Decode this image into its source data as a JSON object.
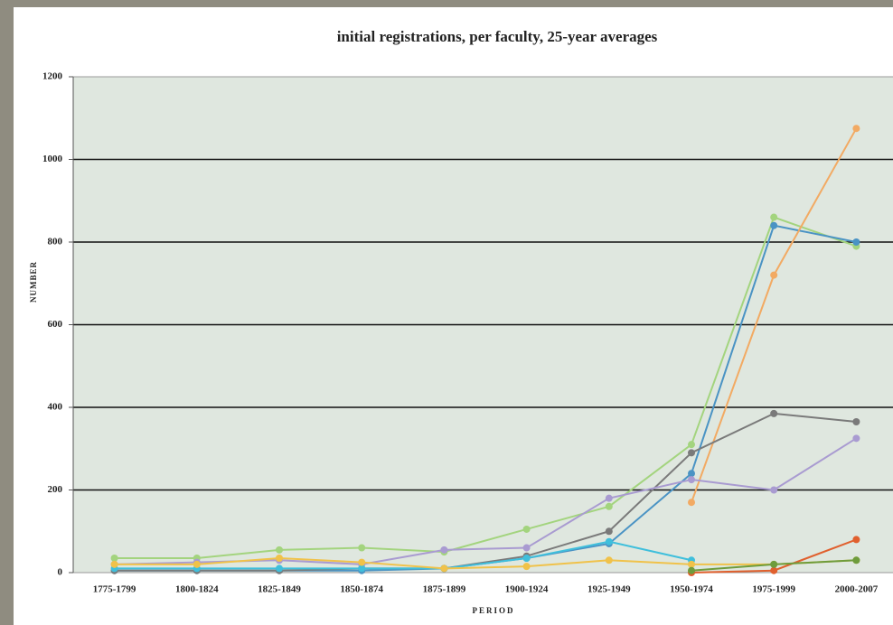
{
  "chart_data": {
    "type": "line",
    "title": "initial registrations, per faculty, 25-year averages",
    "x_label": "PERIOD",
    "y_label": "NUMBER",
    "categories": [
      "1775-1799",
      "1800-1824",
      "1825-1849",
      "1850-1874",
      "1875-1899",
      "1900-1924",
      "1925-1949",
      "1950-1974",
      "1975-1999",
      "2000-2007"
    ],
    "series": [
      {
        "color": "#a3d47e",
        "values": [
          35,
          35,
          55,
          60,
          50,
          105,
          160,
          310,
          860,
          790
        ]
      },
      {
        "color": "#4a93c4",
        "values": [
          5,
          5,
          5,
          5,
          10,
          35,
          70,
          240,
          840,
          800
        ]
      },
      {
        "color": "#f2aa63",
        "values": [
          null,
          null,
          null,
          null,
          null,
          null,
          null,
          170,
          720,
          1075
        ]
      },
      {
        "color": "#7a7a7a",
        "values": [
          5,
          5,
          5,
          10,
          10,
          40,
          100,
          290,
          385,
          365
        ]
      },
      {
        "color": "#a99bd1",
        "values": [
          20,
          25,
          30,
          20,
          55,
          60,
          180,
          225,
          200,
          325
        ]
      },
      {
        "color": "#3fbfdc",
        "values": [
          10,
          10,
          10,
          10,
          10,
          35,
          75,
          30,
          null,
          null
        ]
      },
      {
        "color": "#f0c24a",
        "values": [
          20,
          20,
          35,
          25,
          10,
          15,
          30,
          20,
          20,
          30
        ]
      },
      {
        "color": "#e0602e",
        "values": [
          null,
          null,
          null,
          null,
          null,
          null,
          null,
          0,
          5,
          80
        ]
      },
      {
        "color": "#6e9c3c",
        "values": [
          null,
          null,
          null,
          null,
          null,
          null,
          null,
          5,
          20,
          30
        ]
      }
    ],
    "ylim": [
      0,
      1200
    ],
    "yticks": [
      0,
      200,
      400,
      600,
      800,
      1000,
      1200
    ],
    "grid": true
  }
}
